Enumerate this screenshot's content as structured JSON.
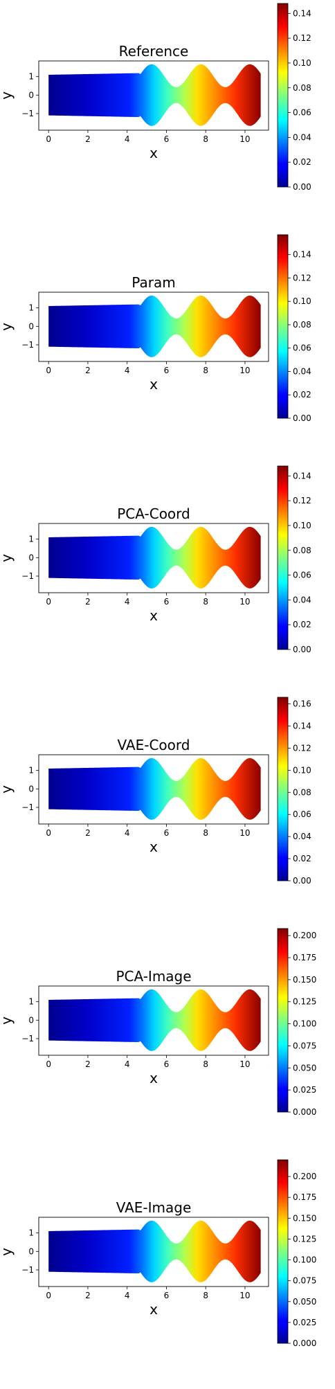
{
  "figure": {
    "colormap": "jet",
    "domain_shape": "channel with three sinusoidal bumps, flat inlet section from x=0 to x≈4.6",
    "field": "scalar field increasing from 0 at x=0 to maximum at x≈10.8"
  },
  "chart_data": [
    {
      "type": "heatmap",
      "title": "Reference",
      "xlabel": "x",
      "ylabel": "y",
      "xlim": [
        -0.5,
        11.2
      ],
      "ylim": [
        -1.9,
        1.85
      ],
      "xticks": [
        "0",
        "2",
        "4",
        "6",
        "8",
        "10"
      ],
      "yticks": [
        "1",
        "0",
        "−1"
      ],
      "colorbar_ticks": [
        "0.00",
        "0.02",
        "0.04",
        "0.06",
        "0.08",
        "0.10",
        "0.12",
        "0.14"
      ],
      "colorbar_range": [
        0,
        0.148
      ],
      "colormap": "jet"
    },
    {
      "type": "heatmap",
      "title": "Param",
      "xlabel": "x",
      "ylabel": "y",
      "xlim": [
        -0.5,
        11.2
      ],
      "ylim": [
        -1.9,
        1.85
      ],
      "xticks": [
        "0",
        "2",
        "4",
        "6",
        "8",
        "10"
      ],
      "yticks": [
        "1",
        "0",
        "−1"
      ],
      "colorbar_ticks": [
        "0.00",
        "0.02",
        "0.04",
        "0.06",
        "0.08",
        "0.10",
        "0.12",
        "0.14"
      ],
      "colorbar_range": [
        0,
        0.157
      ],
      "colormap": "jet"
    },
    {
      "type": "heatmap",
      "title": "PCA-Coord",
      "xlabel": "x",
      "ylabel": "y",
      "xlim": [
        -0.5,
        11.2
      ],
      "ylim": [
        -1.9,
        1.85
      ],
      "xticks": [
        "0",
        "2",
        "4",
        "6",
        "8",
        "10"
      ],
      "yticks": [
        "1",
        "0",
        "−1"
      ],
      "colorbar_ticks": [
        "0.00",
        "0.02",
        "0.04",
        "0.06",
        "0.08",
        "0.10",
        "0.12",
        "0.14"
      ],
      "colorbar_range": [
        0,
        0.148
      ],
      "colormap": "jet"
    },
    {
      "type": "heatmap",
      "title": "VAE-Coord",
      "xlabel": "x",
      "ylabel": "y",
      "xlim": [
        -0.5,
        11.2
      ],
      "ylim": [
        -1.9,
        1.85
      ],
      "xticks": [
        "0",
        "2",
        "4",
        "6",
        "8",
        "10"
      ],
      "yticks": [
        "1",
        "0",
        "−1"
      ],
      "colorbar_ticks": [
        "0.00",
        "0.02",
        "0.04",
        "0.06",
        "0.08",
        "0.10",
        "0.12",
        "0.14",
        "0.16"
      ],
      "colorbar_range": [
        0,
        0.166
      ],
      "colormap": "jet"
    },
    {
      "type": "heatmap",
      "title": "PCA-Image",
      "xlabel": "x",
      "ylabel": "y",
      "xlim": [
        -0.5,
        11.2
      ],
      "ylim": [
        -1.9,
        1.85
      ],
      "xticks": [
        "0",
        "2",
        "4",
        "6",
        "8",
        "10"
      ],
      "yticks": [
        "1",
        "0",
        "−1"
      ],
      "colorbar_ticks": [
        "0.000",
        "0.025",
        "0.050",
        "0.075",
        "0.100",
        "0.125",
        "0.150",
        "0.175",
        "0.200"
      ],
      "colorbar_range": [
        0,
        0.208
      ],
      "colormap": "jet"
    },
    {
      "type": "heatmap",
      "title": "VAE-Image",
      "xlabel": "x",
      "ylabel": "y",
      "xlim": [
        -0.5,
        11.2
      ],
      "ylim": [
        -1.9,
        1.85
      ],
      "xticks": [
        "0",
        "2",
        "4",
        "6",
        "8",
        "10"
      ],
      "yticks": [
        "1",
        "0",
        "−1"
      ],
      "colorbar_ticks": [
        "0.000",
        "0.025",
        "0.050",
        "0.075",
        "0.100",
        "0.125",
        "0.150",
        "0.175",
        "0.200"
      ],
      "colorbar_range": [
        0,
        0.22
      ],
      "colormap": "jet"
    }
  ]
}
